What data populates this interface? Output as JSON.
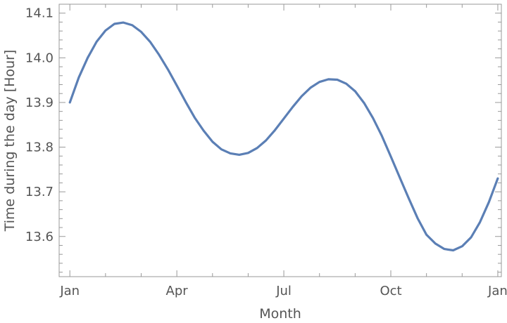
{
  "chart_data": {
    "type": "line",
    "title": "",
    "xlabel": "Month",
    "ylabel": "Time during the day [Hour]",
    "xlim": [
      -0.3,
      12.1
    ],
    "ylim": [
      13.51,
      14.12
    ],
    "grid": false,
    "x_ticks": [
      {
        "value": 0,
        "label": "Jan"
      },
      {
        "value": 3,
        "label": "Apr"
      },
      {
        "value": 6,
        "label": "Jul"
      },
      {
        "value": 9,
        "label": "Oct"
      },
      {
        "value": 12,
        "label": "Jan"
      }
    ],
    "y_ticks": [
      {
        "value": 13.6,
        "label": "13.6"
      },
      {
        "value": 13.7,
        "label": "13.7"
      },
      {
        "value": 13.8,
        "label": "13.8"
      },
      {
        "value": 13.9,
        "label": "13.9"
      },
      {
        "value": 14.0,
        "label": "14.0"
      },
      {
        "value": 14.1,
        "label": "14.1"
      }
    ],
    "series": [
      {
        "color": "#5b7fb5",
        "x": [
          0,
          0.25,
          0.5,
          0.75,
          1.0,
          1.25,
          1.5,
          1.75,
          2.0,
          2.25,
          2.5,
          2.75,
          3.0,
          3.25,
          3.5,
          3.75,
          4.0,
          4.25,
          4.5,
          4.75,
          5.0,
          5.25,
          5.5,
          5.75,
          6.0,
          6.25,
          6.5,
          6.75,
          7.0,
          7.25,
          7.5,
          7.75,
          8.0,
          8.25,
          8.5,
          8.75,
          9.0,
          9.25,
          9.5,
          9.75,
          10.0,
          10.25,
          10.5,
          10.75,
          11.0,
          11.25,
          11.5,
          11.75,
          12.0
        ],
        "y": [
          13.9,
          13.956,
          14.0,
          14.036,
          14.061,
          14.076,
          14.079,
          14.073,
          14.058,
          14.036,
          14.007,
          13.974,
          13.938,
          13.901,
          13.866,
          13.837,
          13.812,
          13.795,
          13.786,
          13.783,
          13.787,
          13.798,
          13.815,
          13.838,
          13.864,
          13.89,
          13.914,
          13.933,
          13.946,
          13.952,
          13.951,
          13.942,
          13.925,
          13.899,
          13.865,
          13.825,
          13.779,
          13.732,
          13.686,
          13.641,
          13.604,
          13.584,
          13.572,
          13.569,
          13.578,
          13.598,
          13.632,
          13.677,
          13.73
        ]
      }
    ]
  }
}
